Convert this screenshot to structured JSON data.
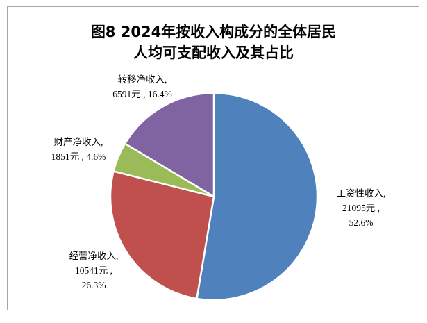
{
  "chart_data": {
    "type": "pie",
    "title_line1": "图8  2024年按收入构成分的全体居民",
    "title_line2": "人均可支配收入及其占比",
    "slices": [
      {
        "label": "工资性收入,",
        "amount": "21095元 ,",
        "percent_text": "52.6%",
        "value": 21095,
        "percent": 52.6,
        "color": "#4f81bd"
      },
      {
        "label": "经营净收入,",
        "amount": "10541元 ,",
        "percent_text": "26.3%",
        "value": 10541,
        "percent": 26.3,
        "color": "#c0504d"
      },
      {
        "label": "财产净收入,",
        "amount": "1851元 , 4.6%",
        "percent_text": "",
        "value": 1851,
        "percent": 4.6,
        "color": "#9bbb59"
      },
      {
        "label": "转移净收入,",
        "amount": "6591元 , 16.4%",
        "percent_text": "",
        "value": 6591,
        "percent": 16.4,
        "color": "#8064a2"
      }
    ],
    "start_angle": "12 o'clock",
    "direction": "clockwise",
    "legend": "none"
  }
}
